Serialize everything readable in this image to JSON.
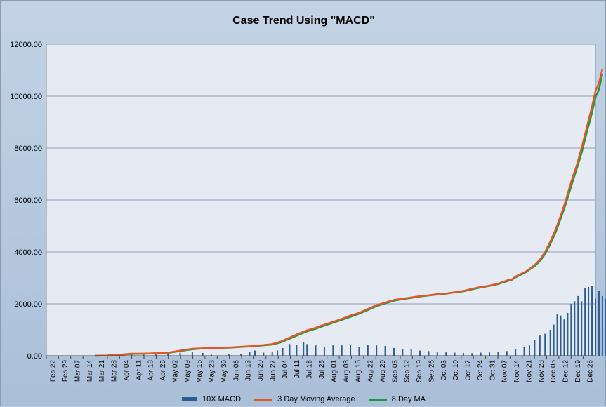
{
  "chart_data": {
    "type": "bar",
    "title": "Case Trend Using \"MACD\"",
    "xlabel": "",
    "ylabel": "",
    "ylim": [
      0,
      12000
    ],
    "yticks": [
      "0.00",
      "2000.00",
      "4000.00",
      "6000.00",
      "8000.00",
      "10000.00",
      "12000.00"
    ],
    "categories": [
      "Feb 22",
      "Feb 29",
      "Mar 07",
      "Mar 14",
      "Mar 21",
      "Mar 28",
      "Apr 04",
      "Apr 11",
      "Apr 18",
      "Apr 25",
      "May 02",
      "May 09",
      "May 16",
      "May 23",
      "May 30",
      "Jun 06",
      "Jun 13",
      "Jun 20",
      "Jun 27",
      "Jul 04",
      "Jul 11",
      "Jul 18",
      "Jul 25",
      "Aug 01",
      "Aug 08",
      "Aug 15",
      "Aug 22",
      "Aug 29",
      "Sep 05",
      "Sep 12",
      "Sep 19",
      "Sep 26",
      "Oct 03",
      "Oct 10",
      "Oct 17",
      "Oct 24",
      "Oct 31",
      "Nov 07",
      "Nov 14",
      "Nov 21",
      "Nov 28",
      "Dec 05",
      "Dec 12",
      "Dec 19",
      "Dec 26"
    ],
    "days_total": 316,
    "grid": true,
    "legend_position": "bottom",
    "colors": {
      "macd": "#2a5c96",
      "ma3": "#e8542a",
      "ma8": "#1f9a3a",
      "plot_bg": "#e6ebf3",
      "grid": "#8a9cb3"
    },
    "series": [
      {
        "name": "10X MACD",
        "kind": "bar",
        "points": [
          [
            28,
            15
          ],
          [
            35,
            25
          ],
          [
            42,
            40
          ],
          [
            49,
            50
          ],
          [
            56,
            40
          ],
          [
            63,
            50
          ],
          [
            70,
            70
          ],
          [
            77,
            120
          ],
          [
            84,
            150
          ],
          [
            90,
            110
          ],
          [
            95,
            40
          ],
          [
            105,
            50
          ],
          [
            112,
            80
          ],
          [
            117,
            160
          ],
          [
            120,
            200
          ],
          [
            125,
            120
          ],
          [
            130,
            150
          ],
          [
            133,
            200
          ],
          [
            136,
            300
          ],
          [
            140,
            450
          ],
          [
            144,
            420
          ],
          [
            148,
            520
          ],
          [
            150,
            450
          ],
          [
            155,
            400
          ],
          [
            160,
            350
          ],
          [
            165,
            400
          ],
          [
            170,
            400
          ],
          [
            175,
            420
          ],
          [
            180,
            350
          ],
          [
            185,
            420
          ],
          [
            190,
            400
          ],
          [
            195,
            380
          ],
          [
            200,
            300
          ],
          [
            205,
            250
          ],
          [
            210,
            250
          ],
          [
            215,
            200
          ],
          [
            220,
            180
          ],
          [
            225,
            150
          ],
          [
            230,
            130
          ],
          [
            235,
            120
          ],
          [
            240,
            110
          ],
          [
            245,
            100
          ],
          [
            250,
            120
          ],
          [
            255,
            130
          ],
          [
            260,
            150
          ],
          [
            265,
            180
          ],
          [
            270,
            250
          ],
          [
            275,
            330
          ],
          [
            278,
            400
          ],
          [
            281,
            600
          ],
          [
            284,
            780
          ],
          [
            287,
            850
          ],
          [
            290,
            1000
          ],
          [
            292,
            1200
          ],
          [
            294,
            1600
          ],
          [
            296,
            1550
          ],
          [
            298,
            1400
          ],
          [
            300,
            1650
          ],
          [
            302,
            2000
          ],
          [
            304,
            2100
          ],
          [
            306,
            2300
          ],
          [
            308,
            2100
          ],
          [
            310,
            2600
          ],
          [
            312,
            2650
          ],
          [
            314,
            2700
          ],
          [
            316,
            2200
          ],
          [
            318,
            2500
          ],
          [
            320,
            2300
          ],
          [
            322,
            2200
          ],
          [
            324,
            2450
          ],
          [
            326,
            2200
          ]
        ]
      },
      {
        "name": "3 Day Moving Average",
        "kind": "line",
        "points": [
          [
            28,
            0
          ],
          [
            35,
            10
          ],
          [
            42,
            40
          ],
          [
            49,
            80
          ],
          [
            56,
            80
          ],
          [
            63,
            100
          ],
          [
            70,
            120
          ],
          [
            77,
            200
          ],
          [
            84,
            270
          ],
          [
            90,
            290
          ],
          [
            105,
            320
          ],
          [
            112,
            350
          ],
          [
            120,
            380
          ],
          [
            130,
            450
          ],
          [
            135,
            550
          ],
          [
            140,
            700
          ],
          [
            145,
            850
          ],
          [
            150,
            980
          ],
          [
            155,
            1080
          ],
          [
            160,
            1200
          ],
          [
            170,
            1420
          ],
          [
            175,
            1550
          ],
          [
            180,
            1650
          ],
          [
            185,
            1800
          ],
          [
            190,
            1950
          ],
          [
            195,
            2050
          ],
          [
            200,
            2150
          ],
          [
            205,
            2200
          ],
          [
            210,
            2250
          ],
          [
            215,
            2300
          ],
          [
            220,
            2330
          ],
          [
            225,
            2380
          ],
          [
            230,
            2400
          ],
          [
            235,
            2450
          ],
          [
            240,
            2500
          ],
          [
            245,
            2580
          ],
          [
            250,
            2650
          ],
          [
            255,
            2700
          ],
          [
            260,
            2780
          ],
          [
            265,
            2900
          ],
          [
            268,
            2950
          ],
          [
            270,
            3050
          ],
          [
            273,
            3150
          ],
          [
            276,
            3250
          ],
          [
            278,
            3350
          ],
          [
            281,
            3500
          ],
          [
            284,
            3700
          ],
          [
            287,
            4000
          ],
          [
            290,
            4400
          ],
          [
            293,
            4850
          ],
          [
            296,
            5400
          ],
          [
            299,
            6000
          ],
          [
            302,
            6700
          ],
          [
            305,
            7300
          ],
          [
            308,
            8000
          ],
          [
            311,
            8800
          ],
          [
            314,
            9600
          ],
          [
            316,
            10200
          ],
          [
            318,
            10500
          ],
          [
            320,
            11050
          ]
        ]
      },
      {
        "name": "8 Day MA",
        "kind": "line",
        "points": [
          [
            28,
            0
          ],
          [
            35,
            10
          ],
          [
            42,
            40
          ],
          [
            49,
            70
          ],
          [
            56,
            80
          ],
          [
            63,
            95
          ],
          [
            70,
            110
          ],
          [
            77,
            180
          ],
          [
            84,
            250
          ],
          [
            90,
            280
          ],
          [
            105,
            310
          ],
          [
            112,
            340
          ],
          [
            120,
            370
          ],
          [
            130,
            430
          ],
          [
            135,
            520
          ],
          [
            140,
            660
          ],
          [
            145,
            800
          ],
          [
            150,
            940
          ],
          [
            155,
            1040
          ],
          [
            160,
            1160
          ],
          [
            170,
            1380
          ],
          [
            175,
            1500
          ],
          [
            180,
            1620
          ],
          [
            185,
            1760
          ],
          [
            190,
            1910
          ],
          [
            195,
            2020
          ],
          [
            200,
            2120
          ],
          [
            205,
            2180
          ],
          [
            210,
            2230
          ],
          [
            215,
            2280
          ],
          [
            220,
            2320
          ],
          [
            225,
            2360
          ],
          [
            230,
            2390
          ],
          [
            235,
            2440
          ],
          [
            240,
            2480
          ],
          [
            245,
            2560
          ],
          [
            250,
            2630
          ],
          [
            255,
            2690
          ],
          [
            260,
            2760
          ],
          [
            265,
            2870
          ],
          [
            268,
            2930
          ],
          [
            270,
            3020
          ],
          [
            273,
            3120
          ],
          [
            276,
            3220
          ],
          [
            278,
            3320
          ],
          [
            281,
            3450
          ],
          [
            284,
            3640
          ],
          [
            287,
            3920
          ],
          [
            290,
            4300
          ],
          [
            293,
            4740
          ],
          [
            296,
            5280
          ],
          [
            299,
            5860
          ],
          [
            302,
            6520
          ],
          [
            305,
            7150
          ],
          [
            308,
            7800
          ],
          [
            311,
            8600
          ],
          [
            314,
            9350
          ],
          [
            316,
            9950
          ],
          [
            318,
            10250
          ],
          [
            320,
            10850
          ]
        ]
      }
    ]
  }
}
